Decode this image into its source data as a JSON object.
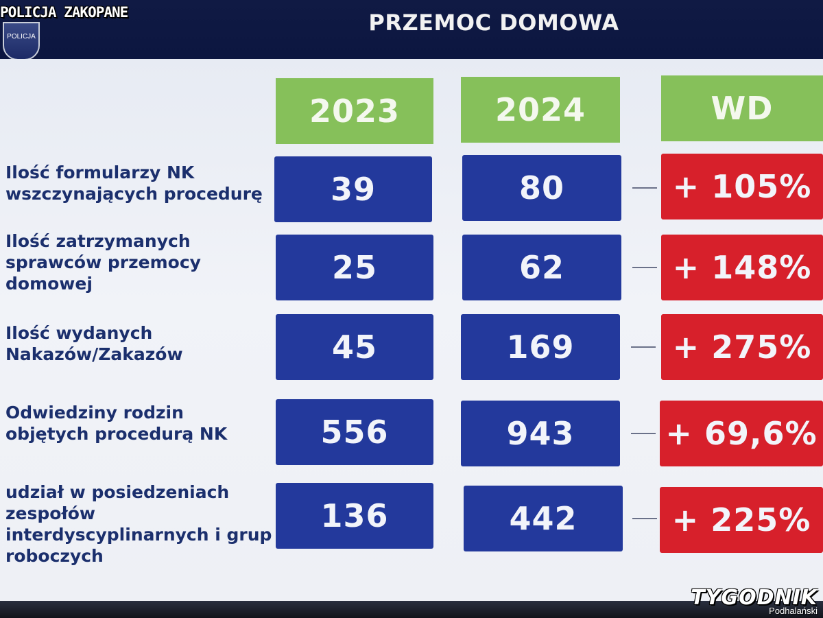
{
  "header": {
    "corner_title": "POLICJA ZAKOPANE",
    "badge_text": "POLICJA",
    "slide_title": "PRZEMOC DOMOWA"
  },
  "columns": [
    "2023",
    "2024",
    "WD"
  ],
  "rows": [
    {
      "label": "Ilość formularzy NK wszczynających procedurę",
      "v2023": "39",
      "v2024": "80",
      "wd": "+ 105%"
    },
    {
      "label": "Ilość zatrzymanych sprawców przemocy domowej",
      "v2023": "25",
      "v2024": "62",
      "wd": "+ 148%"
    },
    {
      "label": "Ilość wydanych Nakazów/Zakazów",
      "v2023": "45",
      "v2024": "169",
      "wd": "+ 275%"
    },
    {
      "label": "Odwiedziny rodzin objętych procedurą NK",
      "v2023": "556",
      "v2024": "943",
      "wd": "+ 69,6%"
    },
    {
      "label": "udział w posiedzeniach zespołów interdyscyplinarnych i grup roboczych",
      "v2023": "136",
      "v2024": "442",
      "wd": "+ 225%"
    }
  ],
  "watermark": {
    "main": "TYGODNIK",
    "sub": "Podhalański"
  },
  "colors": {
    "header": "#0c1640",
    "green": "#86c05a",
    "blue": "#23399c",
    "red": "#d7202b",
    "label": "#1b2f6d"
  }
}
